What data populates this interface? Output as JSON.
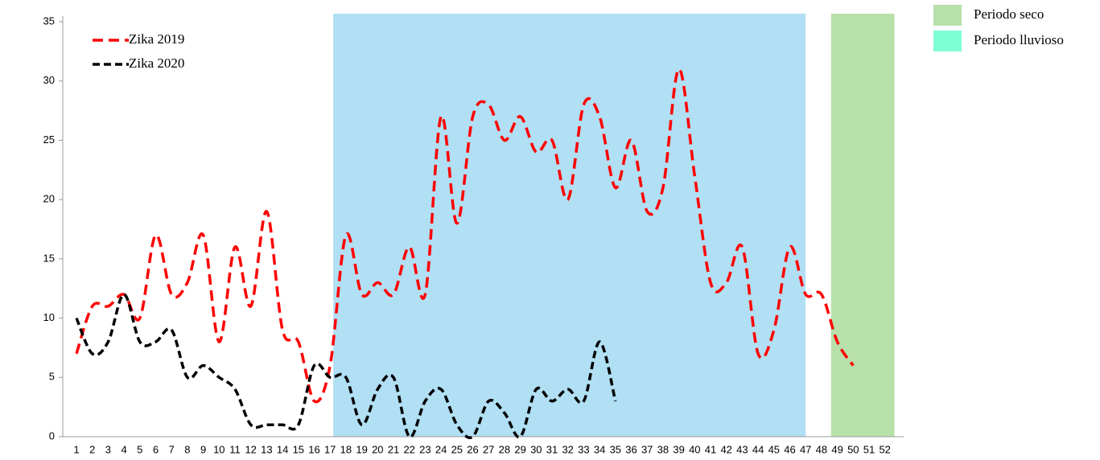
{
  "chart_data": {
    "type": "line",
    "categories": [
      "1",
      "2",
      "3",
      "4",
      "5",
      "6",
      "7",
      "8",
      "9",
      "10",
      "11",
      "12",
      "13",
      "14",
      "15",
      "16",
      "17",
      "18",
      "19",
      "20",
      "21",
      "22",
      "23",
      "24",
      "25",
      "26",
      "27",
      "28",
      "29",
      "30",
      "31",
      "32",
      "33",
      "34",
      "35",
      "36",
      "37",
      "38",
      "39",
      "40",
      "41",
      "42",
      "43",
      "44",
      "45",
      "46",
      "47",
      "48",
      "49",
      "50",
      "51",
      "52"
    ],
    "series": [
      {
        "name": "Zika 2019",
        "color": "#ff0000",
        "dash": "13 7",
        "values": [
          7,
          11,
          11,
          12,
          10,
          17,
          12,
          13,
          17,
          8,
          16,
          11,
          19,
          9,
          8,
          3,
          6,
          17,
          12,
          13,
          12,
          16,
          12,
          27,
          18,
          27,
          28,
          25,
          27,
          24,
          25,
          20,
          28,
          27,
          21,
          25,
          19,
          21,
          31,
          22,
          13,
          13,
          16,
          7,
          9,
          16,
          12,
          12,
          8,
          6,
          null,
          null
        ]
      },
      {
        "name": "Zika 2020",
        "color": "#000000",
        "dash": "9 5",
        "values": [
          10,
          7,
          8,
          12,
          8,
          8,
          9,
          5,
          6,
          5,
          4,
          1,
          1,
          1,
          1,
          6,
          5,
          5,
          1,
          4,
          5,
          0,
          3,
          4,
          1,
          0,
          3,
          2,
          0,
          4,
          3,
          4,
          3,
          8,
          3,
          null,
          null,
          null,
          null,
          null,
          null,
          null,
          null,
          null,
          null,
          null,
          null,
          null,
          null,
          null,
          null,
          null
        ]
      }
    ],
    "periods": [
      {
        "name": "Periodo lluvioso",
        "color": "#b1dff3",
        "legend_color": "#7fffd4",
        "from": 17.2,
        "to": 47.0
      },
      {
        "name": "Periodo seco",
        "color": "#b8e0ab",
        "legend_color": "#b8e0ab",
        "from": 48.6,
        "to": 52.6
      }
    ],
    "ylim": [
      0,
      35
    ],
    "yticks": [
      0,
      5,
      10,
      15,
      20,
      25,
      30,
      35
    ],
    "grid": false
  }
}
